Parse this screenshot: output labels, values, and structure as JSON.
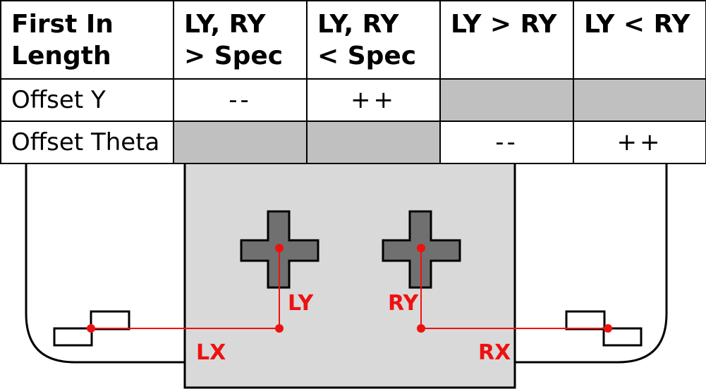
{
  "table": {
    "headers": [
      "First In\nLength",
      "LY, RY\n> Spec",
      "LY, RY\n< Spec",
      "LY > RY",
      "LY < RY"
    ],
    "rows": [
      {
        "label": "Offset Y",
        "cells": [
          "--",
          "++",
          "",
          ""
        ],
        "shaded": [
          false,
          false,
          true,
          true
        ]
      },
      {
        "label": "Offset Theta",
        "cells": [
          "",
          "",
          "--",
          "++"
        ],
        "shaded": [
          true,
          true,
          false,
          false
        ]
      }
    ]
  },
  "diagram": {
    "labels": {
      "ly": "LY",
      "ry": "RY",
      "lx": "LX",
      "rx": "RX"
    },
    "colors": {
      "measure_line": "#ee1111",
      "panel_fill": "#d9d9d9",
      "cross_fill": "#707070",
      "cell_shade": "#c0c0c0"
    }
  }
}
